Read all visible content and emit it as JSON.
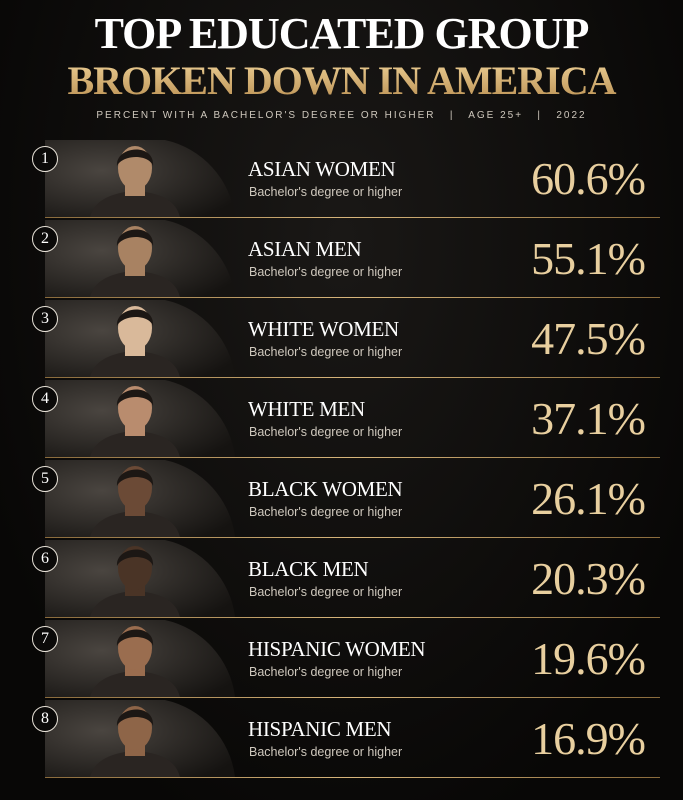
{
  "header": {
    "title": "TOP EDUCATED GROUP",
    "subtitle": "BROKEN DOWN IN AMERICA",
    "caption": "PERCENT WITH A BACHELOR'S DEGREE OR HIGHER   |   AGE 25+   |   2022"
  },
  "rows": [
    {
      "rank": "1",
      "group": "ASIAN WOMEN",
      "note": "Bachelor's degree or higher",
      "value": "60.6%"
    },
    {
      "rank": "2",
      "group": "ASIAN MEN",
      "note": "Bachelor's degree or higher",
      "value": "55.1%"
    },
    {
      "rank": "3",
      "group": "WHITE WOMEN",
      "note": "Bachelor's degree or higher",
      "value": "47.5%"
    },
    {
      "rank": "4",
      "group": "WHITE MEN",
      "note": "Bachelor's degree or higher",
      "value": "37.1%"
    },
    {
      "rank": "5",
      "group": "BLACK WOMEN",
      "note": "Bachelor's degree or higher",
      "value": "26.1%"
    },
    {
      "rank": "6",
      "group": "BLACK MEN",
      "note": "Bachelor's degree or higher",
      "value": "20.3%"
    },
    {
      "rank": "7",
      "group": "HISPANIC WOMEN",
      "note": "Bachelor's degree or higher",
      "value": "19.6%"
    },
    {
      "rank": "8",
      "group": "HISPANIC MEN",
      "note": "Bachelor's degree or higher",
      "value": "16.9%"
    }
  ]
}
